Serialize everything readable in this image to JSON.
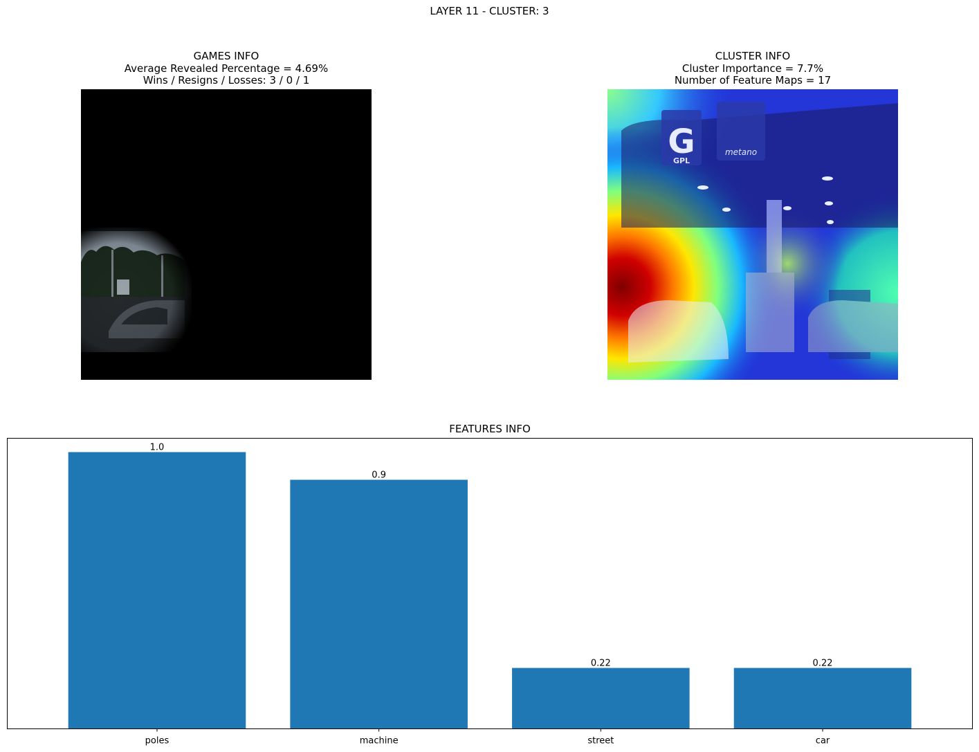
{
  "figure": {
    "suptitle": "LAYER 11 - CLUSTER: 3"
  },
  "games_info": {
    "title": "GAMES INFO",
    "line1": "Average Revealed Percentage = 4.69%",
    "line2": "Wins / Resigns / Losses: 3 / 0 / 1"
  },
  "cluster_info": {
    "title": "CLUSTER INFO",
    "line1": "Cluster Importance = 7.7%",
    "line2": "Number of Feature Maps = 17",
    "sign_letter_g": "G",
    "sign_text_gpl": "GPL",
    "sign_text_metano": "metano"
  },
  "colors": {
    "bar": "#1f77b4",
    "axis": "#000000"
  },
  "chart_data": {
    "type": "bar",
    "title": "FEATURES INFO",
    "categories": [
      "poles",
      "machine",
      "street",
      "car"
    ],
    "values": [
      1.0,
      0.9,
      0.22,
      0.22
    ],
    "value_labels": [
      "1.0",
      "0.9",
      "0.22",
      "0.22"
    ],
    "xlabel": "",
    "ylabel": "",
    "ylim": [
      0,
      1.05
    ],
    "y_ticks_visible": false,
    "grid": false
  }
}
